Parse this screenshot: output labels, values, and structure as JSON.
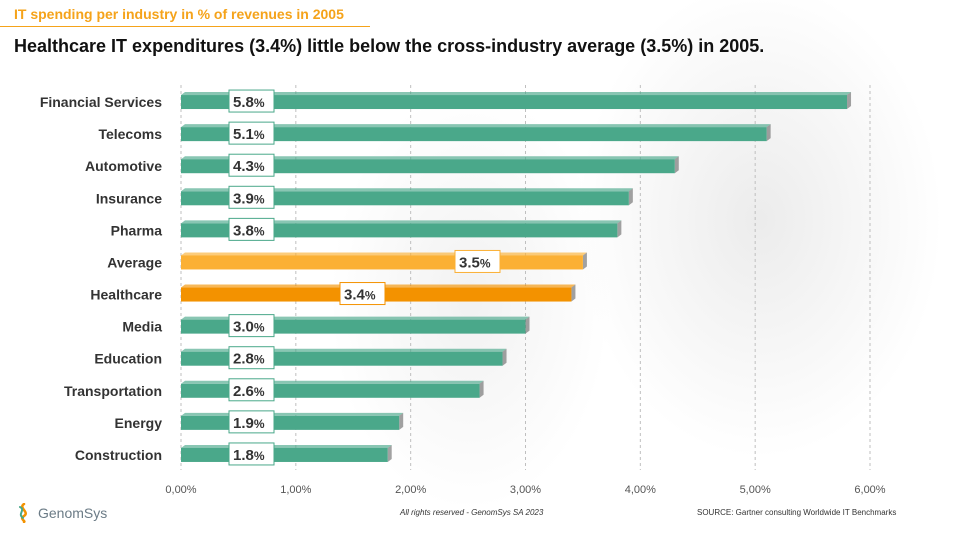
{
  "slide": {
    "subtitle": "IT spending per industry in % of revenues in 2005",
    "headline": "Healthcare IT expenditures (3.4%) little below the cross-industry average (3.5%) in 2005.",
    "logo_text": "GenomSys",
    "footer_rights": "All rights reserved - GenomSys SA 2023",
    "footer_source": "SOURCE: Gartner consulting Worldwide IT Benchmarks"
  },
  "colors": {
    "default": "#4aa88a",
    "average": "#fbb034",
    "healthcare": "#f39200",
    "accent": "#f5a31a"
  },
  "chart_data": {
    "type": "bar",
    "orientation": "horizontal",
    "categories": [
      "Financial Services",
      "Telecoms",
      "Automotive",
      "Insurance",
      "Pharma",
      "Average",
      "Healthcare",
      "Media",
      "Education",
      "Transportation",
      "Energy",
      "Construction"
    ],
    "values": [
      5.8,
      5.1,
      4.3,
      3.9,
      3.8,
      3.5,
      3.4,
      3.0,
      2.8,
      2.6,
      1.9,
      1.8
    ],
    "data_labels": [
      "5.8",
      "5.1",
      "4.3",
      "3.9",
      "3.8",
      "3.5",
      "3.4",
      "3.0",
      "2.8",
      "2.6",
      "1.9",
      "1.8"
    ],
    "data_label_unit": "%",
    "highlight": {
      "Average": "average",
      "Healthcare": "healthcare"
    },
    "xlim": [
      0,
      6
    ],
    "xticks": [
      0,
      1,
      2,
      3,
      4,
      5,
      6
    ],
    "xtick_labels": [
      "0,00%",
      "1,00%",
      "2,00%",
      "3,00%",
      "4,00%",
      "5,00%",
      "6,00%"
    ],
    "grid": "vertical dashed"
  }
}
